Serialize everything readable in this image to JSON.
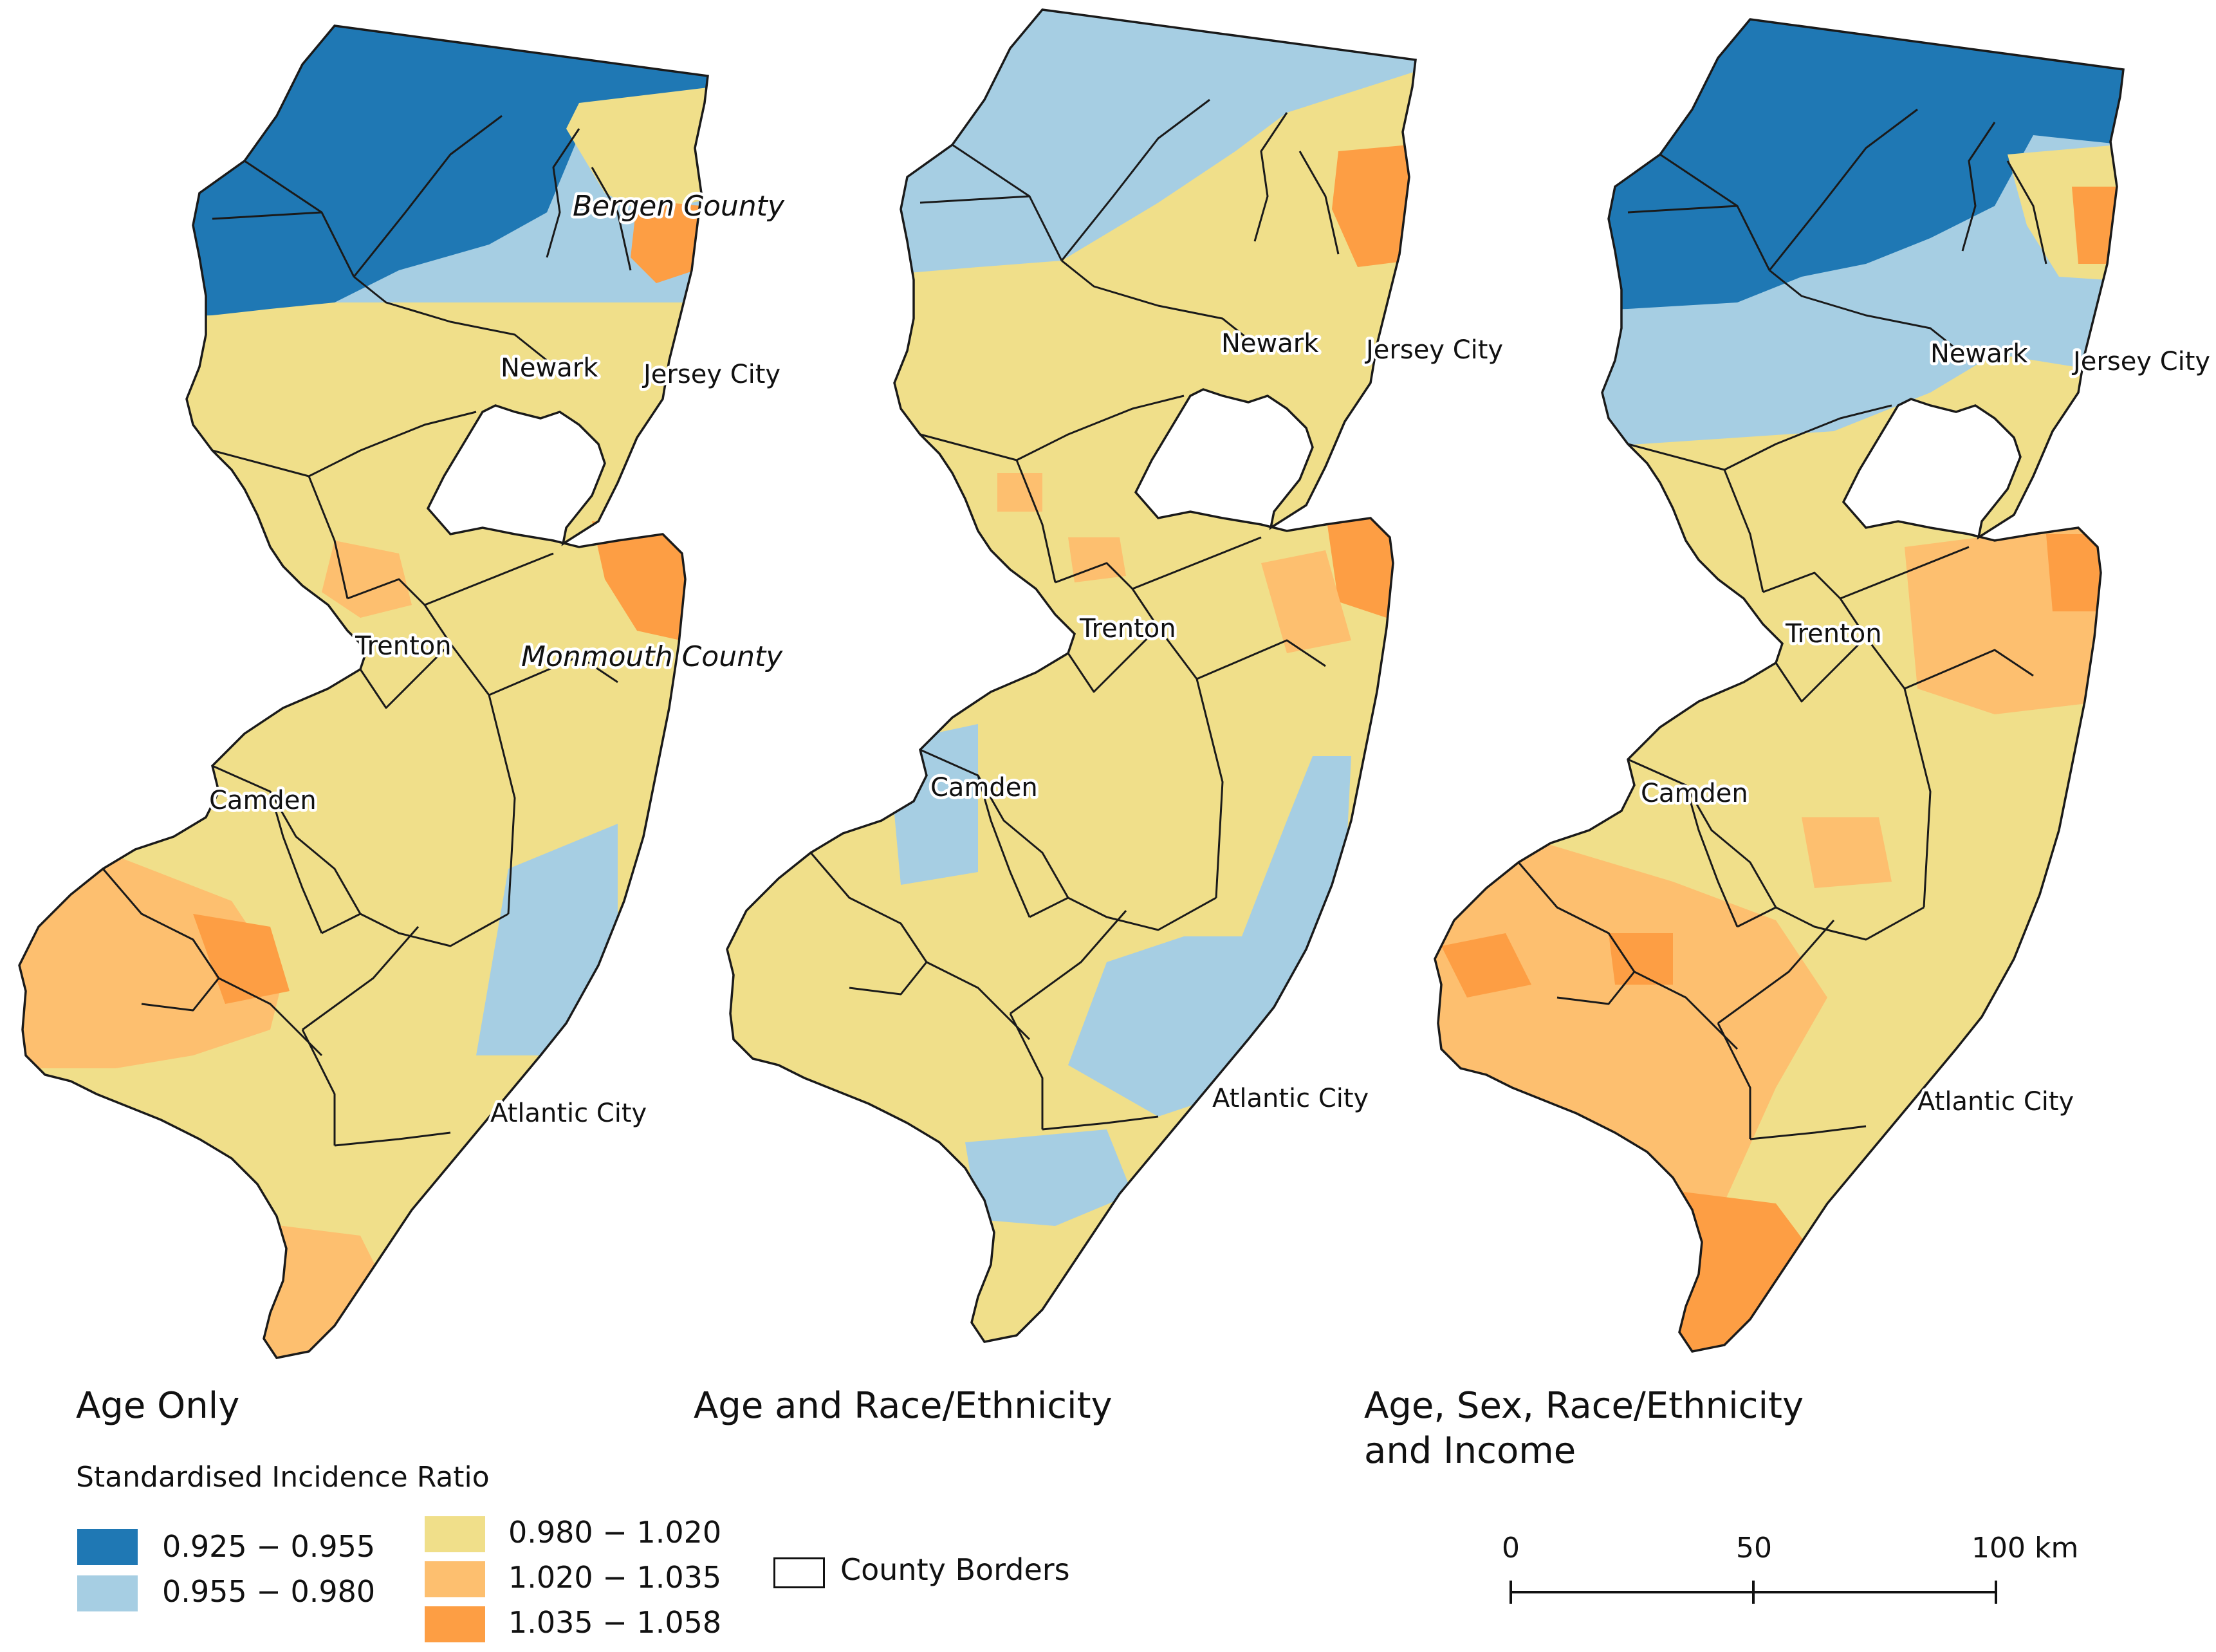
{
  "colors": {
    "c1": "#1f78b4",
    "c2": "#a6cee3",
    "c3": "#f0df8a",
    "c4": "#fdbf6f",
    "c5": "#fd9e44"
  },
  "maps": [
    {
      "title": "Age Only",
      "labels": {
        "bergen": "Bergen County",
        "monmouth": "Monmouth County",
        "newark": "Newark",
        "jersey": "Jersey City",
        "trenton": "Trenton",
        "camden": "Camden",
        "atlantic": "Atlantic City"
      }
    },
    {
      "title": "Age and Race/Ethnicity",
      "labels": {
        "newark": "Newark",
        "jersey": "Jersey City",
        "trenton": "Trenton",
        "camden": "Camden",
        "atlantic": "Atlantic City"
      }
    },
    {
      "title": "Age, Sex, Race/Ethnicity\nand Income",
      "labels": {
        "newark": "Newark",
        "jersey": "Jersey City",
        "trenton": "Trenton",
        "camden": "Camden",
        "atlantic": "Atlantic City"
      }
    }
  ],
  "legend": {
    "title": "Standardised Incidence Ratio",
    "items": [
      {
        "label": "0.925 − 0.955",
        "color": "#1f78b4"
      },
      {
        "label": "0.955 − 0.980",
        "color": "#a6cee3"
      },
      {
        "label": "0.980 − 1.020",
        "color": "#f0df8a"
      },
      {
        "label": "1.020 − 1.035",
        "color": "#fdbf6f"
      },
      {
        "label": "1.035 − 1.058",
        "color": "#fd9e44"
      }
    ],
    "borders": "County Borders"
  },
  "scale": {
    "ticks": [
      "0",
      "50",
      "100 km"
    ]
  }
}
